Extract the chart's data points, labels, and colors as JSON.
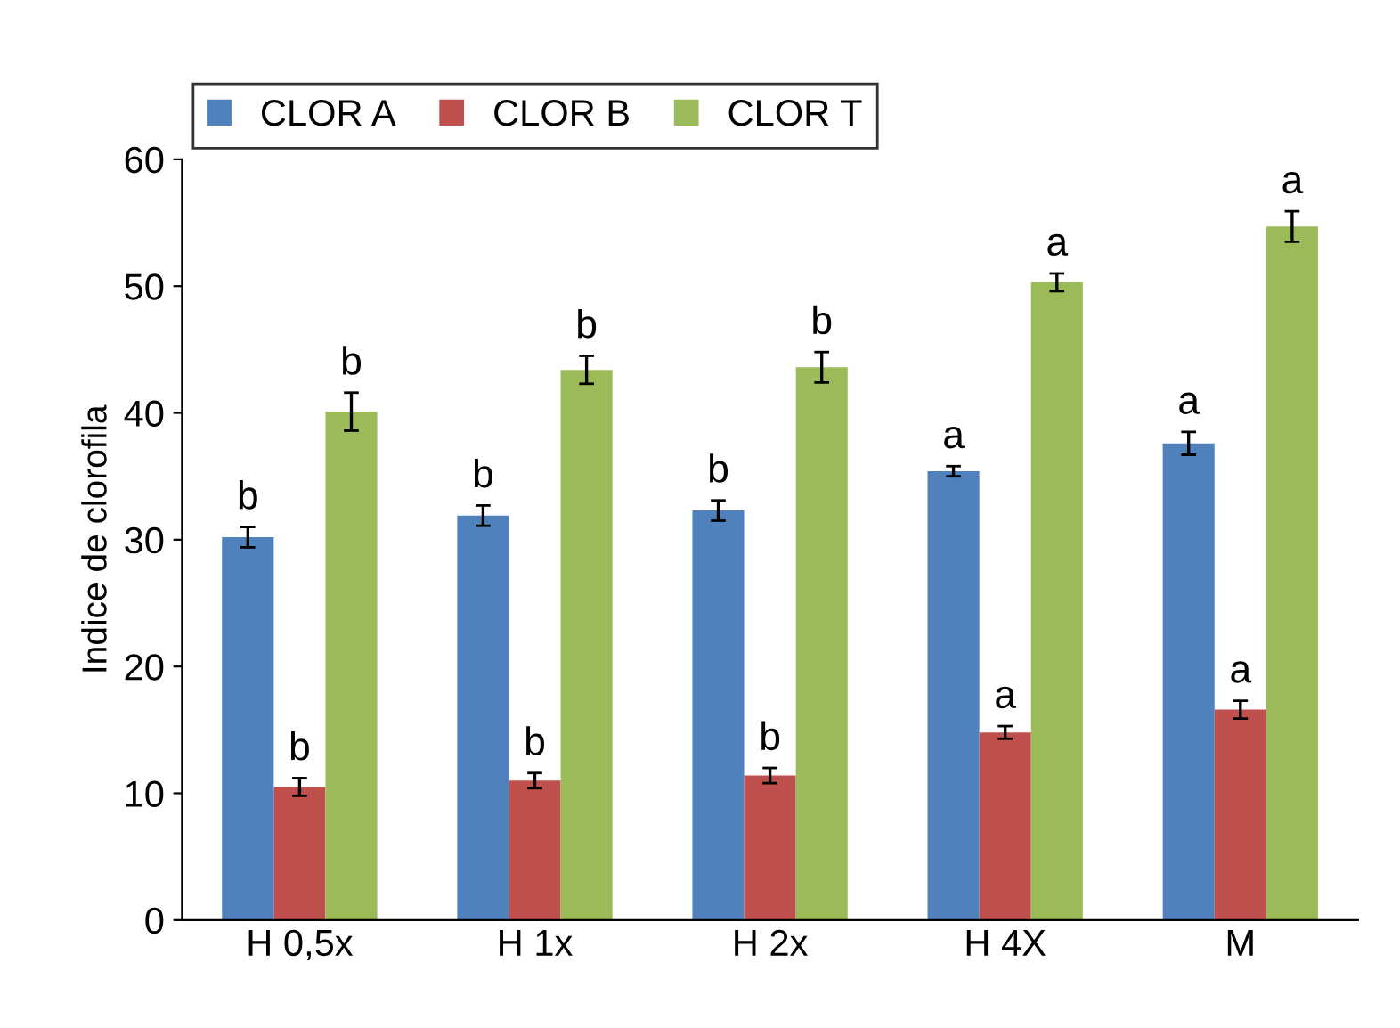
{
  "chart_data": {
    "type": "bar",
    "ylabel": "Indice de clorofila",
    "categories": [
      "H 0,5x",
      "H 1x",
      "H 2x",
      "H 4X",
      "M"
    ],
    "series": [
      {
        "name": "CLOR A",
        "color": "#4f81bd",
        "values": [
          30.2,
          31.9,
          32.3,
          35.4,
          37.6
        ],
        "errors": [
          0.8,
          0.8,
          0.8,
          0.4,
          0.9
        ]
      },
      {
        "name": "CLOR B",
        "color": "#c0504d",
        "values": [
          10.5,
          11.0,
          11.4,
          14.8,
          16.6
        ],
        "errors": [
          0.7,
          0.6,
          0.6,
          0.5,
          0.7
        ]
      },
      {
        "name": "CLOR T",
        "color": "#9bbb59",
        "values": [
          40.1,
          43.4,
          43.6,
          50.3,
          54.7
        ],
        "errors": [
          1.5,
          1.1,
          1.2,
          0.7,
          1.2
        ]
      }
    ],
    "annotations": [
      "b",
      "b",
      "b",
      "b",
      "b",
      "b",
      "b",
      "b",
      "b",
      "a",
      "a",
      "a",
      "a",
      "a",
      "a"
    ],
    "ylim": [
      0,
      60
    ],
    "yticks": [
      0,
      10,
      20,
      30,
      40,
      50,
      60
    ],
    "grid": false,
    "legend": "top"
  }
}
